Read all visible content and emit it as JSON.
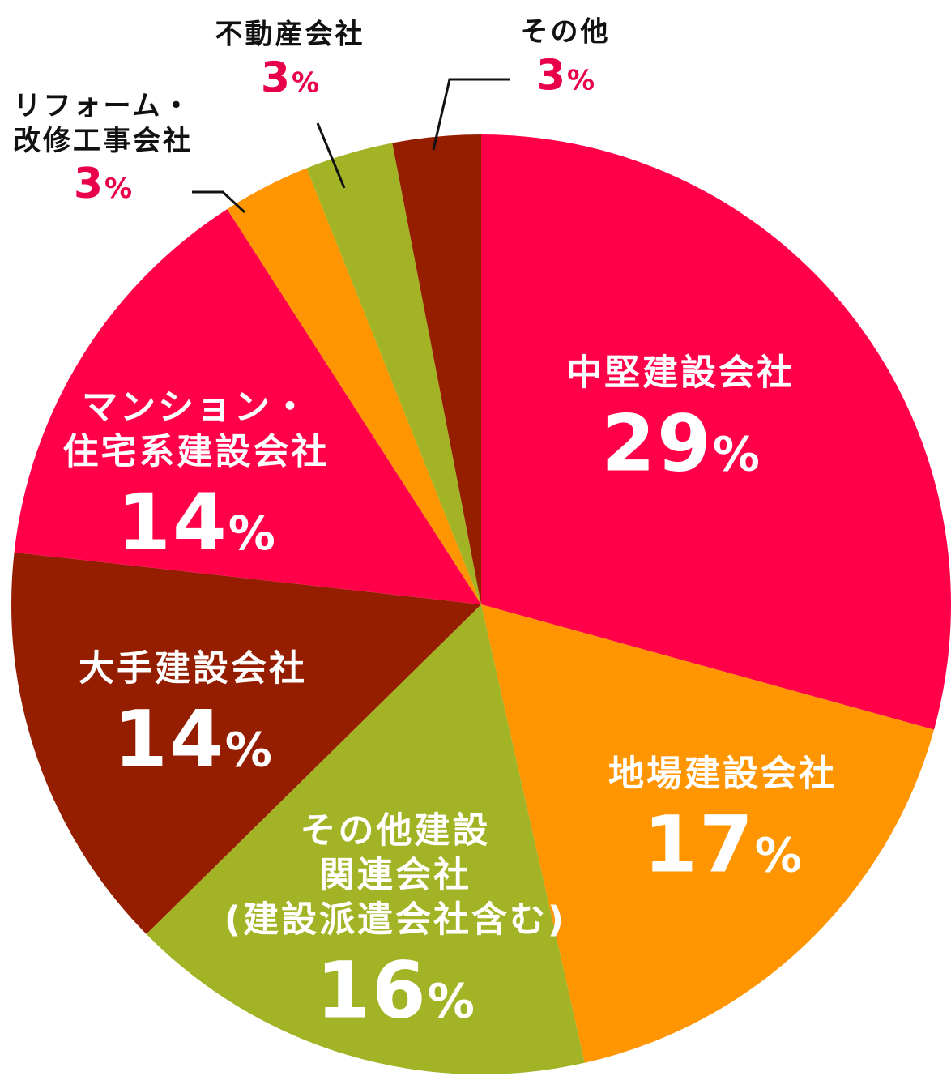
{
  "chart_data": {
    "type": "pie",
    "unit": "%",
    "start_angle_deg": 0,
    "direction": "clockwise",
    "slices": [
      {
        "label": "中堅建設会社",
        "value": 29,
        "color": "#ff0049"
      },
      {
        "label": "地場建設会社",
        "value": 17,
        "color": "#ff9500"
      },
      {
        "label": "その他建設関連会社(建設派遣会社含む)",
        "value": 16,
        "color": "#a2b426"
      },
      {
        "label": "大手建設会社",
        "value": 14,
        "color": "#961e00"
      },
      {
        "label": "マンション・住宅系建設会社",
        "value": 14,
        "color": "#ff0049"
      },
      {
        "label": "リフォーム・改修工事会社",
        "value": 3,
        "color": "#ff9500"
      },
      {
        "label": "不動産会社",
        "value": 3,
        "color": "#a2b426"
      },
      {
        "label": "その他",
        "value": 3,
        "color": "#961e00"
      }
    ]
  },
  "labels": {
    "chuken": {
      "line1": "中堅建設会社",
      "pct": "29",
      "sign": "%"
    },
    "jiba": {
      "line1": "地場建設会社",
      "pct": "17",
      "sign": "%"
    },
    "other_construction": {
      "line1": "その他建設",
      "line2": "関連会社",
      "line3": "(建設派遣会社含む)",
      "pct": "16",
      "sign": "%"
    },
    "ote": {
      "line1": "大手建設会社",
      "pct": "14",
      "sign": "%"
    },
    "mansion": {
      "line1": "マンション・",
      "line2": "住宅系建設会社",
      "pct": "14",
      "sign": "%"
    },
    "reform": {
      "line1": "リフォーム・",
      "line2": "改修工事会社",
      "pct": "3",
      "sign": "%"
    },
    "fudosan": {
      "line1": "不動産会社",
      "pct": "3",
      "sign": "%"
    },
    "sonota": {
      "line1": "その他",
      "pct": "3",
      "sign": "%"
    }
  }
}
